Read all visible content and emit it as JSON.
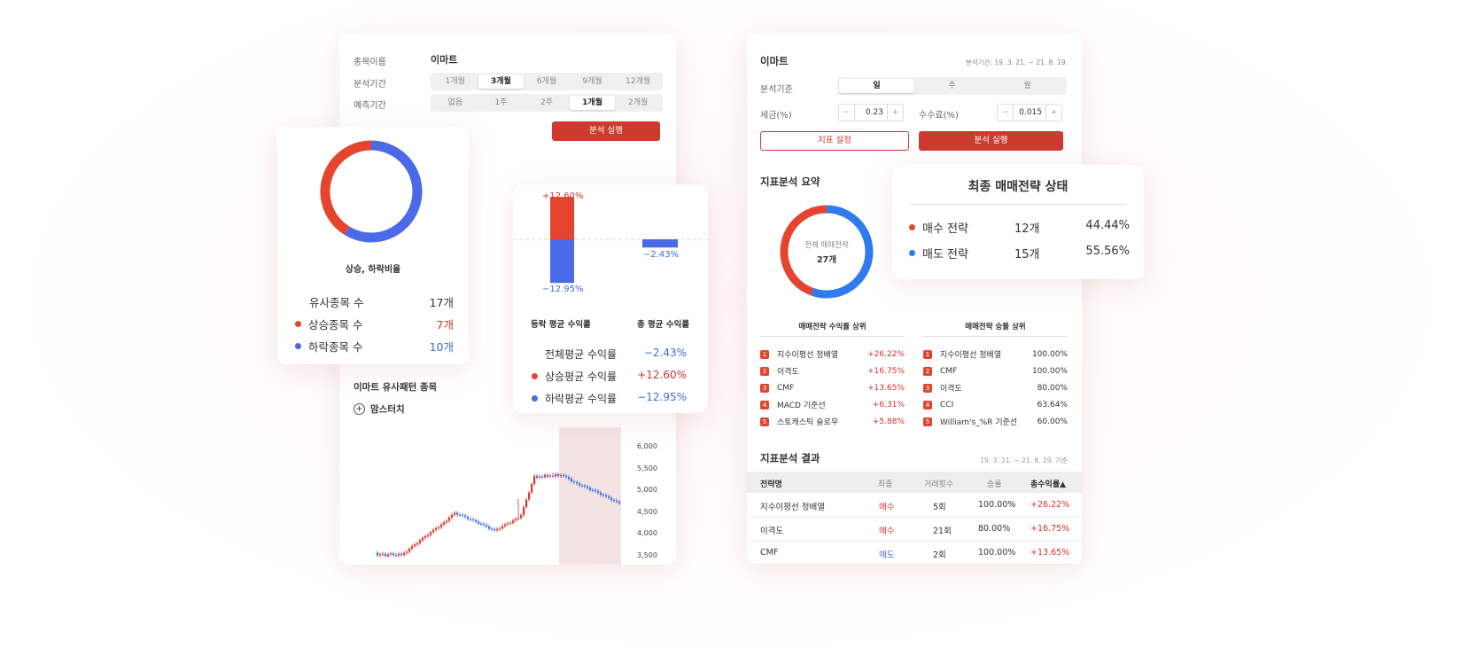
{
  "left_panel": {
    "stock_label": "종목이름",
    "stock_value": "이마트",
    "period_label": "분석기간",
    "period_options": [
      "1개월",
      "3개월",
      "6개월",
      "9개월",
      "12개월"
    ],
    "period_selected": "3개월",
    "forecast_label": "예측기간",
    "forecast_options": [
      "없음",
      "1주",
      "2주",
      "1개월",
      "2개월"
    ],
    "forecast_selected": "1개월",
    "run_button": "분석 실행",
    "similar_title": "이마트 유사패턴 종목",
    "similar_item": "맘스터치",
    "price_axis": [
      "6,000",
      "5,500",
      "5,000",
      "4,500",
      "4,000",
      "3,500"
    ]
  },
  "ratio_card": {
    "title": "상승, 하락비율",
    "rows": [
      {
        "label": "유사종목 수",
        "value": "17개"
      },
      {
        "label": "상승종목 수",
        "value": "7개"
      },
      {
        "label": "하락종목 수",
        "value": "10개"
      }
    ],
    "colors": {
      "up": "#e5452f",
      "down": "#4a6ae8"
    }
  },
  "return_card": {
    "bar_top_label": "+12.60%",
    "bar_bottom_label": "−12.95%",
    "bar2_label": "−2.43%",
    "col1_title": "등락 평균 수익률",
    "col2_title": "총 평균 수익률",
    "rows": [
      {
        "label": "전체평균 수익률",
        "value": "−2.43%"
      },
      {
        "label": "상승평균 수익률",
        "value": "+12.60%"
      },
      {
        "label": "하락평균 수익률",
        "value": "−12.95%"
      }
    ]
  },
  "right_panel": {
    "title": "이마트",
    "period_text": "분석기간: 19. 3. 21. ~ 21. 8. 19.",
    "basis_label": "분석기준",
    "basis_options": [
      "일",
      "주",
      "월"
    ],
    "basis_selected": "일",
    "tax_label": "세금(%)",
    "tax_value": "0.23",
    "fee_label": "수수료(%)",
    "fee_value": "0.015",
    "minus": "−",
    "plus": "+",
    "indicator_button": "지표 설정",
    "run_button": "분석 실행",
    "summary_title": "지표분석 요약",
    "donut_label": "전체 매매전략",
    "donut_count": "27개",
    "top_return_title": "매매전략 수익률 상위",
    "top_return": [
      {
        "rank": "1",
        "name": "지수이평선 정배열",
        "value": "+26.22%"
      },
      {
        "rank": "2",
        "name": "이격도",
        "value": "+16.75%"
      },
      {
        "rank": "3",
        "name": "CMF",
        "value": "+13.65%"
      },
      {
        "rank": "4",
        "name": "MACD 기준선",
        "value": "+6.31%"
      },
      {
        "rank": "5",
        "name": "스토캐스틱 슬로우",
        "value": "+5.88%"
      }
    ],
    "top_win_title": "매매전략 승률 상위",
    "top_win": [
      {
        "rank": "1",
        "name": "지수이평선 정배열",
        "value": "100.00%"
      },
      {
        "rank": "2",
        "name": "CMF",
        "value": "100.00%"
      },
      {
        "rank": "3",
        "name": "이격도",
        "value": "80.00%"
      },
      {
        "rank": "4",
        "name": "CCI",
        "value": "63.64%"
      },
      {
        "rank": "5",
        "name": "William's_%R 기준선",
        "value": "60.00%"
      }
    ],
    "result_title": "지표분석 결과",
    "result_date": "19. 3. 21. ~ 21. 8. 19. 기준",
    "table_headers": [
      "전략명",
      "최종",
      "거래횟수",
      "승률",
      "총수익률▲"
    ],
    "table_rows": [
      {
        "name": "지수이평선 정배열",
        "final": "매수",
        "count": "5회",
        "win": "100.00%",
        "ret": "+26.22%"
      },
      {
        "name": "이격도",
        "final": "매수",
        "count": "21회",
        "win": "80.00%",
        "ret": "+16.75%"
      },
      {
        "name": "CMF",
        "final": "매도",
        "count": "2회",
        "win": "100.00%",
        "ret": "+13.65%"
      }
    ]
  },
  "strategy_card": {
    "title": "최종 매매전략 상태",
    "rows": [
      {
        "label": "매수 전략",
        "count": "12개",
        "pct": "44.44%"
      },
      {
        "label": "매도 전략",
        "count": "15개",
        "pct": "55.56%"
      }
    ],
    "colors": {
      "buy": "#e5452f",
      "sell": "#2f7bef"
    }
  },
  "chart_data": [
    {
      "type": "pie",
      "title": "상승, 하락비율",
      "categories": [
        "상승종목 수",
        "하락종목 수"
      ],
      "values": [
        7,
        10
      ]
    },
    {
      "type": "bar",
      "categories": [
        "등락 평균 수익률",
        "총 평균 수익률"
      ],
      "series": [
        {
          "values": [
            12.6,
            null
          ]
        },
        {
          "values": [
            -12.95,
            -2.43
          ]
        }
      ]
    },
    {
      "type": "pie",
      "title": "전체 매매전략",
      "categories": [
        "매수 전략",
        "매도 전략"
      ],
      "values": [
        12,
        15
      ]
    }
  ]
}
